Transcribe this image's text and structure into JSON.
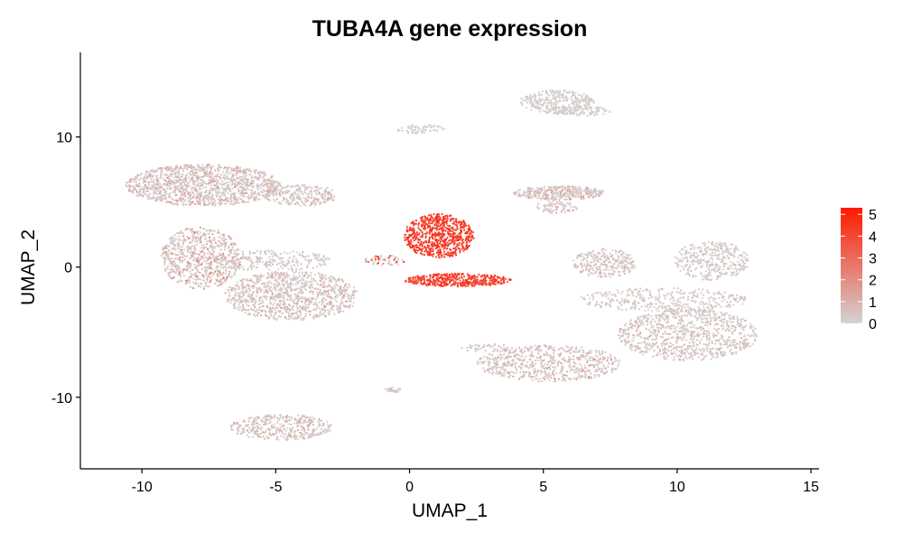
{
  "chart_data": {
    "type": "scatter",
    "title": "TUBA4A gene expression",
    "xlabel": "UMAP_1",
    "ylabel": "UMAP_2",
    "xlim": [
      -12.3,
      15.3
    ],
    "ylim": [
      -15.5,
      16.5
    ],
    "xticks": [
      -10,
      -5,
      0,
      5,
      10,
      15
    ],
    "yticks": [
      -10,
      0,
      10
    ],
    "grid": false,
    "color_scale": {
      "low": "#d3d3d3",
      "high": "#ff1a00",
      "min": 0,
      "max": 5.3,
      "ticks": [
        0,
        1,
        2,
        3,
        4,
        5
      ]
    },
    "legend_position": "right",
    "clusters": [
      {
        "name": "upper-left",
        "cx": -7.7,
        "cy": 6.3,
        "rx": 2.9,
        "ry": 1.6,
        "n": 1300,
        "expr": 0.9
      },
      {
        "name": "upper-left-tail",
        "cx": -4.0,
        "cy": 5.5,
        "rx": 1.4,
        "ry": 0.8,
        "n": 250,
        "expr": 0.8
      },
      {
        "name": "left-mid",
        "cx": -7.8,
        "cy": 0.7,
        "rx": 1.5,
        "ry": 2.4,
        "n": 700,
        "expr": 1.2
      },
      {
        "name": "bridge-left",
        "cx": -5.2,
        "cy": 0.5,
        "rx": 2.3,
        "ry": 0.8,
        "n": 250,
        "expr": 0.4
      },
      {
        "name": "left-lower",
        "cx": -4.4,
        "cy": -2.2,
        "rx": 2.5,
        "ry": 1.9,
        "n": 1000,
        "expr": 0.8
      },
      {
        "name": "bottom-left",
        "cx": -4.8,
        "cy": -12.3,
        "rx": 1.9,
        "ry": 1.0,
        "n": 400,
        "expr": 0.8
      },
      {
        "name": "top-small",
        "cx": 0.4,
        "cy": 10.6,
        "rx": 0.9,
        "ry": 0.35,
        "n": 70,
        "expr": 0.2
      },
      {
        "name": "center-blob",
        "cx": 1.1,
        "cy": 2.4,
        "rx": 1.3,
        "ry": 1.7,
        "n": 700,
        "expr": 4.3
      },
      {
        "name": "center-band",
        "cx": 1.8,
        "cy": -1.0,
        "rx": 2.0,
        "ry": 0.5,
        "n": 450,
        "expr": 4.1
      },
      {
        "name": "center-tail",
        "cx": -0.9,
        "cy": 0.5,
        "rx": 0.8,
        "ry": 0.4,
        "n": 60,
        "expr": 2.8
      },
      {
        "name": "small-bottom",
        "cx": -0.6,
        "cy": -9.4,
        "rx": 0.3,
        "ry": 0.25,
        "n": 30,
        "expr": 0.5
      },
      {
        "name": "top-right",
        "cx": 5.5,
        "cy": 12.7,
        "rx": 1.4,
        "ry": 0.9,
        "n": 300,
        "expr": 0.2
      },
      {
        "name": "top-right-tail",
        "cx": 6.3,
        "cy": 12.0,
        "rx": 1.2,
        "ry": 0.4,
        "n": 120,
        "expr": 0.2
      },
      {
        "name": "mid-right-upper",
        "cx": 5.6,
        "cy": 5.7,
        "rx": 1.7,
        "ry": 0.55,
        "n": 350,
        "expr": 0.8
      },
      {
        "name": "mid-right-upper-tail",
        "cx": 5.5,
        "cy": 4.6,
        "rx": 0.8,
        "ry": 0.5,
        "n": 80,
        "expr": 0.6
      },
      {
        "name": "mid-right",
        "cx": 7.3,
        "cy": 0.3,
        "rx": 1.2,
        "ry": 1.1,
        "n": 280,
        "expr": 0.6
      },
      {
        "name": "right-top",
        "cx": 11.3,
        "cy": 0.5,
        "rx": 1.4,
        "ry": 1.5,
        "n": 350,
        "expr": 0.4
      },
      {
        "name": "right-bridge",
        "cx": 9.5,
        "cy": -2.5,
        "rx": 3.2,
        "ry": 0.9,
        "n": 350,
        "expr": 0.5
      },
      {
        "name": "right-main",
        "cx": 10.4,
        "cy": -5.2,
        "rx": 2.6,
        "ry": 2.0,
        "n": 900,
        "expr": 0.6
      },
      {
        "name": "bottom-right",
        "cx": 5.2,
        "cy": -7.4,
        "rx": 2.7,
        "ry": 1.4,
        "n": 650,
        "expr": 0.9
      },
      {
        "name": "bottom-right-tail",
        "cx": 2.9,
        "cy": -6.2,
        "rx": 1.0,
        "ry": 0.3,
        "n": 50,
        "expr": 0.4
      }
    ]
  }
}
